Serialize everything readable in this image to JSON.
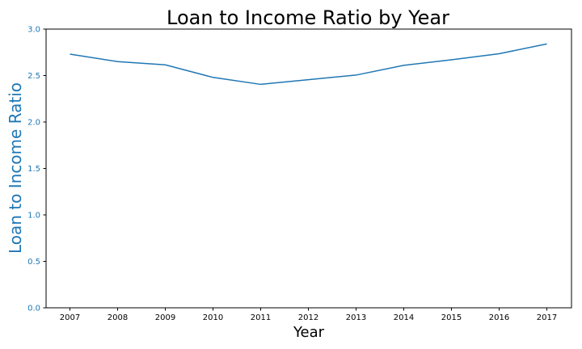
{
  "chart_data": {
    "type": "line",
    "title": "Loan to Income Ratio by Year",
    "xlabel": "Year",
    "ylabel": "Loan to Income Ratio",
    "x": [
      "2007",
      "2008",
      "2009",
      "2010",
      "2011",
      "2012",
      "2013",
      "2014",
      "2015",
      "2016",
      "2017"
    ],
    "series": [
      {
        "values": [
          2.73,
          2.65,
          2.615,
          2.48,
          2.405,
          2.455,
          2.505,
          2.61,
          2.67,
          2.735,
          2.84
        ]
      }
    ],
    "yticks": [
      "0.0",
      "0.5",
      "1.0",
      "1.5",
      "2.0",
      "2.5",
      "3.0"
    ],
    "ylim": [
      0,
      3.0
    ],
    "grid": false,
    "line_color": "#1f77b4",
    "ylabel_color": "#1f77b4",
    "ytick_color": "#1f77b4",
    "xtick_color": "#000000"
  }
}
